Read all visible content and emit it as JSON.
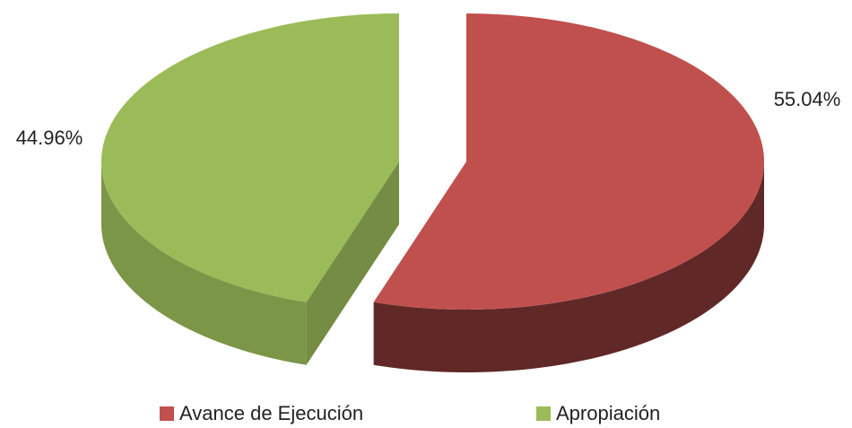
{
  "chart_data": {
    "type": "pie3d",
    "categories": [
      "Avance de Ejecución",
      "Apropiación"
    ],
    "values": [
      55.04,
      44.96
    ],
    "value_labels": [
      "55.04%",
      "44.96%"
    ],
    "colors": [
      "#c0504d",
      "#9bbb59"
    ],
    "legend": "bottom"
  }
}
